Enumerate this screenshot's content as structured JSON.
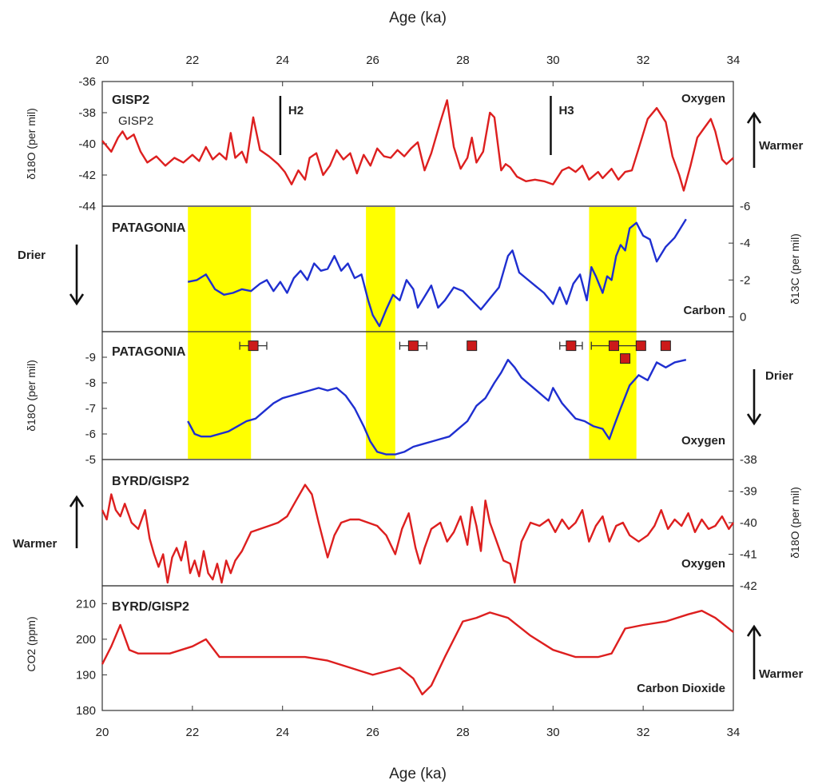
{
  "figure": {
    "x_axis_label": "Age (ka)",
    "x_ticks": [
      "20",
      "22",
      "24",
      "26",
      "28",
      "30",
      "32",
      "34"
    ],
    "xlim": [
      20,
      34
    ]
  },
  "chart_data": [
    {
      "type": "line",
      "panel_title": "GISP2",
      "panel_subtitle": "GISP2",
      "right_label": "Oxygen",
      "ylabel": "δ18O (per mil)",
      "ylim": [
        -44,
        -36
      ],
      "y_ticks": [
        "-36",
        "-38",
        "-40",
        "-42",
        "-44"
      ],
      "axis_side": "left",
      "color": "#dd1f1f",
      "events": [
        {
          "label": "H2",
          "x": 23.95
        },
        {
          "label": "H3",
          "x": 29.95
        }
      ],
      "side_indicator": {
        "label": "Warmer",
        "direction": "up"
      },
      "series": [
        {
          "x": [
            20,
            20.2,
            20.35,
            20.45,
            20.55,
            20.7,
            20.85,
            21.0,
            21.2,
            21.4,
            21.6,
            21.8,
            22.0,
            22.15,
            22.3,
            22.45,
            22.6,
            22.75,
            22.85,
            22.95,
            23.1,
            23.2,
            23.35,
            23.5,
            23.7,
            23.9,
            24.05,
            24.2,
            24.35,
            24.5,
            24.6,
            24.75,
            24.9,
            25.05,
            25.2,
            25.35,
            25.5,
            25.65,
            25.8,
            25.95,
            26.1,
            26.25,
            26.4,
            26.55,
            26.7,
            26.85,
            27.0,
            27.15,
            27.3,
            27.5,
            27.65,
            27.8,
            27.95,
            28.1,
            28.2,
            28.3,
            28.45,
            28.6,
            28.7,
            28.85,
            28.95,
            29.05,
            29.2,
            29.4,
            29.6,
            29.8,
            30.0,
            30.2,
            30.35,
            30.5,
            30.65,
            30.8,
            31.0,
            31.1,
            31.3,
            31.45,
            31.6,
            31.75,
            31.9,
            32.1,
            32.3,
            32.5,
            32.65,
            32.8,
            32.9,
            33.05,
            33.2,
            33.35,
            33.5,
            33.6,
            33.75,
            33.85,
            34.0
          ],
          "y": [
            -39.8,
            -40.5,
            -39.6,
            -39.2,
            -39.7,
            -39.4,
            -40.5,
            -41.2,
            -40.8,
            -41.4,
            -40.9,
            -41.2,
            -40.7,
            -41.1,
            -40.2,
            -41.0,
            -40.6,
            -41.0,
            -39.3,
            -40.9,
            -40.5,
            -41.2,
            -38.3,
            -40.4,
            -40.8,
            -41.3,
            -41.8,
            -42.6,
            -41.7,
            -42.3,
            -40.9,
            -40.6,
            -42.0,
            -41.4,
            -40.4,
            -41.0,
            -40.6,
            -41.9,
            -40.7,
            -41.4,
            -40.3,
            -40.8,
            -40.9,
            -40.4,
            -40.8,
            -40.3,
            -39.9,
            -41.7,
            -40.6,
            -38.6,
            -37.2,
            -40.2,
            -41.6,
            -40.9,
            -39.6,
            -41.2,
            -40.5,
            -38.0,
            -38.3,
            -41.7,
            -41.3,
            -41.5,
            -42.1,
            -42.4,
            -42.3,
            -42.4,
            -42.6,
            -41.7,
            -41.5,
            -41.8,
            -41.4,
            -42.3,
            -41.8,
            -42.2,
            -41.6,
            -42.3,
            -41.8,
            -41.7,
            -40.3,
            -38.4,
            -37.7,
            -38.6,
            -40.8,
            -42.0,
            -43.0,
            -41.4,
            -39.6,
            -39.0,
            -38.4,
            -39.2,
            -41.0,
            -41.3,
            -40.9
          ]
        }
      ]
    },
    {
      "type": "line",
      "panel_title": "PATAGONIA",
      "right_label": "Carbon",
      "ylabel": "δ13C (per mil)",
      "ylim": [
        0.8,
        -6
      ],
      "y_ticks": [
        "-6",
        "-4",
        "-2",
        "0"
      ],
      "axis_side": "right",
      "color": "#1f2fd0",
      "highlight_bands": [
        [
          21.9,
          23.3
        ],
        [
          25.85,
          26.5
        ],
        [
          30.8,
          31.85
        ]
      ],
      "side_indicator": {
        "label": "Drier",
        "direction": "down"
      },
      "series": [
        {
          "x": [
            21.9,
            22.1,
            22.3,
            22.5,
            22.7,
            22.9,
            23.1,
            23.3,
            23.5,
            23.65,
            23.8,
            23.95,
            24.1,
            24.25,
            24.4,
            24.55,
            24.7,
            24.85,
            25.0,
            25.15,
            25.3,
            25.45,
            25.6,
            25.75,
            25.9,
            26.0,
            26.15,
            26.3,
            26.45,
            26.6,
            26.75,
            26.9,
            27.0,
            27.15,
            27.3,
            27.45,
            27.6,
            27.8,
            28.0,
            28.2,
            28.4,
            28.6,
            28.8,
            29.0,
            29.1,
            29.25,
            29.4,
            29.6,
            29.8,
            30.0,
            30.15,
            30.3,
            30.45,
            30.6,
            30.75,
            30.85,
            30.95,
            31.1,
            31.2,
            31.3,
            31.4,
            31.5,
            31.6,
            31.7,
            31.85,
            32.0,
            32.15,
            32.3,
            32.5,
            32.7,
            32.95
          ],
          "y": [
            -1.9,
            -2.0,
            -2.3,
            -1.5,
            -1.2,
            -1.3,
            -1.5,
            -1.4,
            -1.8,
            -2.0,
            -1.4,
            -1.9,
            -1.3,
            -2.1,
            -2.5,
            -2.0,
            -2.9,
            -2.5,
            -2.6,
            -3.3,
            -2.5,
            -2.9,
            -2.1,
            -2.3,
            -0.9,
            -0.1,
            0.5,
            -0.4,
            -1.2,
            -0.9,
            -2.0,
            -1.5,
            -0.5,
            -1.1,
            -1.7,
            -0.5,
            -0.9,
            -1.6,
            -1.4,
            -0.9,
            -0.4,
            -1.0,
            -1.6,
            -3.3,
            -3.6,
            -2.4,
            -2.1,
            -1.7,
            -1.3,
            -0.7,
            -1.6,
            -0.7,
            -1.8,
            -2.3,
            -0.9,
            -2.7,
            -2.2,
            -1.3,
            -2.2,
            -2.0,
            -3.3,
            -3.9,
            -3.6,
            -4.8,
            -5.1,
            -4.4,
            -4.2,
            -3.0,
            -3.8,
            -4.3,
            -5.3
          ]
        }
      ]
    },
    {
      "type": "line",
      "panel_title": "PATAGONIA",
      "right_label": "Oxygen",
      "ylabel": "δ18O (per mil)",
      "ylim": [
        -5,
        -10
      ],
      "y_ticks": [
        "-9",
        "-8",
        "-7",
        "-6",
        "-5"
      ],
      "axis_side": "left",
      "color": "#1f2fd0",
      "highlight_bands": [
        [
          21.9,
          23.3
        ],
        [
          25.85,
          26.5
        ],
        [
          30.8,
          31.85
        ]
      ],
      "side_indicator": {
        "label": "Drier",
        "direction": "down"
      },
      "age_markers": [
        {
          "x": 23.35,
          "y": -9.45,
          "err": 0.3
        },
        {
          "x": 26.9,
          "y": -9.45,
          "err": 0.3
        },
        {
          "x": 28.2,
          "y": -9.45,
          "err": 0
        },
        {
          "x": 30.4,
          "y": -9.45,
          "err": 0.25
        },
        {
          "x": 31.35,
          "y": -9.45,
          "err": 0.5
        },
        {
          "x": 31.95,
          "y": -9.45,
          "err": 0
        },
        {
          "x": 32.5,
          "y": -9.45,
          "err": 0
        },
        {
          "x": 31.6,
          "y": -8.95,
          "err": 0
        }
      ],
      "series": [
        {
          "x": [
            21.9,
            22.05,
            22.2,
            22.4,
            22.6,
            22.8,
            23.0,
            23.2,
            23.4,
            23.6,
            23.8,
            24.0,
            24.2,
            24.4,
            24.6,
            24.8,
            25.0,
            25.2,
            25.4,
            25.6,
            25.8,
            25.95,
            26.1,
            26.3,
            26.5,
            26.7,
            26.9,
            27.1,
            27.3,
            27.5,
            27.7,
            27.9,
            28.1,
            28.3,
            28.5,
            28.7,
            28.85,
            29.0,
            29.15,
            29.3,
            29.5,
            29.7,
            29.9,
            30.0,
            30.2,
            30.35,
            30.5,
            30.7,
            30.9,
            31.1,
            31.25,
            31.35,
            31.5,
            31.7,
            31.9,
            32.1,
            32.3,
            32.5,
            32.7,
            32.95
          ],
          "y": [
            -6.5,
            -6.0,
            -5.9,
            -5.9,
            -6.0,
            -6.1,
            -6.3,
            -6.5,
            -6.6,
            -6.9,
            -7.2,
            -7.4,
            -7.5,
            -7.6,
            -7.7,
            -7.8,
            -7.7,
            -7.8,
            -7.5,
            -7.0,
            -6.3,
            -5.7,
            -5.3,
            -5.2,
            -5.2,
            -5.3,
            -5.5,
            -5.6,
            -5.7,
            -5.8,
            -5.9,
            -6.2,
            -6.5,
            -7.1,
            -7.4,
            -8.0,
            -8.4,
            -8.9,
            -8.6,
            -8.2,
            -7.9,
            -7.6,
            -7.3,
            -7.8,
            -7.2,
            -6.9,
            -6.6,
            -6.5,
            -6.3,
            -6.2,
            -5.8,
            -6.3,
            -7.0,
            -7.9,
            -8.3,
            -8.1,
            -8.8,
            -8.6,
            -8.8,
            -8.9
          ]
        }
      ]
    },
    {
      "type": "line",
      "panel_title": "BYRD/GISP2",
      "right_label": "Oxygen",
      "ylabel": "δ18O (per mil)",
      "ylim": [
        -42,
        -38
      ],
      "y_ticks": [
        "-38",
        "-39",
        "-40",
        "-41",
        "-42"
      ],
      "axis_side": "right",
      "color": "#dd1f1f",
      "side_indicator": {
        "label": "Warmer",
        "direction": "up"
      },
      "series": [
        {
          "x": [
            20,
            20.1,
            20.2,
            20.3,
            20.4,
            20.5,
            20.65,
            20.8,
            20.95,
            21.05,
            21.15,
            21.25,
            21.35,
            21.45,
            21.55,
            21.65,
            21.75,
            21.85,
            21.95,
            22.05,
            22.15,
            22.25,
            22.35,
            22.45,
            22.55,
            22.65,
            22.75,
            22.85,
            22.95,
            23.1,
            23.3,
            23.5,
            23.7,
            23.9,
            24.1,
            24.3,
            24.5,
            24.65,
            24.8,
            25.0,
            25.15,
            25.3,
            25.5,
            25.7,
            25.9,
            26.1,
            26.3,
            26.5,
            26.65,
            26.8,
            26.95,
            27.05,
            27.15,
            27.3,
            27.5,
            27.65,
            27.8,
            27.95,
            28.1,
            28.2,
            28.3,
            28.4,
            28.5,
            28.6,
            28.75,
            28.9,
            29.05,
            29.15,
            29.3,
            29.5,
            29.7,
            29.9,
            30.05,
            30.2,
            30.35,
            30.5,
            30.65,
            30.8,
            30.95,
            31.1,
            31.25,
            31.4,
            31.55,
            31.7,
            31.9,
            32.1,
            32.25,
            32.4,
            32.55,
            32.7,
            32.85,
            33.0,
            33.15,
            33.3,
            33.45,
            33.6,
            33.75,
            33.9,
            34.0
          ],
          "y": [
            -39.6,
            -39.9,
            -39.1,
            -39.6,
            -39.8,
            -39.4,
            -40.0,
            -40.2,
            -39.6,
            -40.5,
            -41.0,
            -41.4,
            -41.0,
            -41.9,
            -41.1,
            -40.8,
            -41.2,
            -40.6,
            -41.6,
            -41.2,
            -41.7,
            -40.9,
            -41.6,
            -41.8,
            -41.3,
            -41.9,
            -41.2,
            -41.6,
            -41.2,
            -40.9,
            -40.3,
            -40.2,
            -40.1,
            -40.0,
            -39.8,
            -39.3,
            -38.8,
            -39.1,
            -40.0,
            -41.1,
            -40.4,
            -40.0,
            -39.9,
            -39.9,
            -40.0,
            -40.1,
            -40.4,
            -41.0,
            -40.2,
            -39.7,
            -40.8,
            -41.3,
            -40.8,
            -40.2,
            -40.0,
            -40.6,
            -40.3,
            -39.8,
            -40.7,
            -39.5,
            -40.1,
            -40.9,
            -39.3,
            -40.0,
            -40.6,
            -41.2,
            -41.3,
            -41.9,
            -40.6,
            -40.0,
            -40.1,
            -39.9,
            -40.3,
            -39.9,
            -40.2,
            -40.0,
            -39.6,
            -40.6,
            -40.1,
            -39.8,
            -40.6,
            -40.1,
            -40.0,
            -40.4,
            -40.6,
            -40.4,
            -40.1,
            -39.6,
            -40.2,
            -39.9,
            -40.1,
            -39.7,
            -40.3,
            -39.9,
            -40.2,
            -40.1,
            -39.8,
            -40.2,
            -40.0
          ]
        }
      ]
    },
    {
      "type": "line",
      "panel_title": "BYRD/GISP2",
      "right_label": "Carbon Dioxide",
      "ylabel": "CO2 (ppm)",
      "ylim": [
        180,
        215
      ],
      "y_ticks": [
        "210",
        "200",
        "190",
        "180"
      ],
      "axis_side": "left",
      "color": "#dd1f1f",
      "side_indicator": {
        "label": "Warmer",
        "direction": "up"
      },
      "series": [
        {
          "x": [
            20,
            20.2,
            20.4,
            20.6,
            20.8,
            21.0,
            21.5,
            22.0,
            22.3,
            22.6,
            23.0,
            23.5,
            24.0,
            24.5,
            25.0,
            25.5,
            26.0,
            26.3,
            26.6,
            26.9,
            27.1,
            27.3,
            27.6,
            28.0,
            28.3,
            28.6,
            29.0,
            29.5,
            30.0,
            30.5,
            31.0,
            31.3,
            31.6,
            32.0,
            32.5,
            33.0,
            33.3,
            33.6,
            34.0
          ],
          "y": [
            193,
            198,
            204,
            197,
            196,
            196,
            196,
            198,
            200,
            195,
            195,
            195,
            195,
            195,
            194,
            192,
            190,
            191,
            192,
            189,
            184.5,
            187,
            195,
            205,
            206,
            207.5,
            206,
            201,
            197,
            195,
            195,
            196,
            203,
            204,
            205,
            207,
            208,
            206,
            202
          ]
        }
      ]
    }
  ]
}
